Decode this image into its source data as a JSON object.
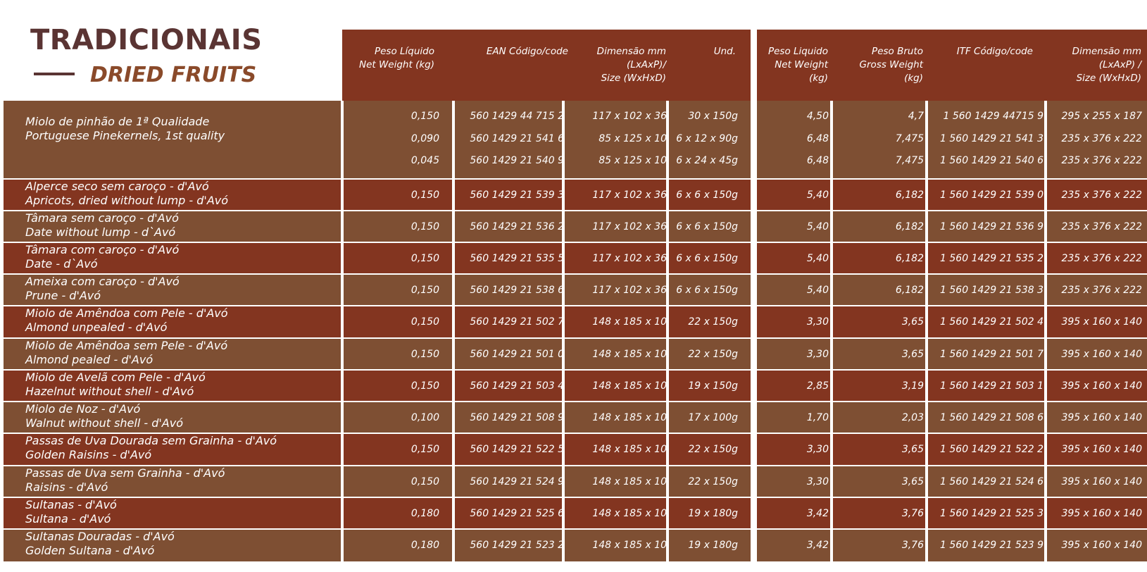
{
  "title": {
    "main": "TRADICIONAIS",
    "sub": "DRIED FRUITS"
  },
  "colors": {
    "header": "#833520",
    "row_dark": "#833520",
    "row_light": "#7e4f33",
    "title": "#5a3433"
  },
  "headers": [
    {
      "lines": [
        "Peso Líquido",
        "Net Weight (kg)"
      ]
    },
    {
      "lines": [
        "EAN Código/code"
      ]
    },
    {
      "lines": [
        "Dimensão mm",
        "(LxAxP)/",
        "Size (WxHxD)"
      ]
    },
    {
      "lines": [
        "Und."
      ]
    },
    {
      "lines": [
        "Peso Liquido",
        "Net Weight",
        "(kg)"
      ]
    },
    {
      "lines": [
        "Peso  Bruto",
        "Gross Weight",
        "(kg)"
      ]
    },
    {
      "lines": [
        "ITF Código/code"
      ]
    },
    {
      "lines": [
        "Dimensão mm",
        "(LxAxP) /",
        "Size (WxHxD)"
      ]
    }
  ],
  "rows": [
    {
      "name_pt": "Miolo de pinhão de 1ª Qualidade",
      "name_en": "Portuguese Pinekernels, 1st quality",
      "values": [
        [
          "0,150",
          "560 1429 44 715 2",
          "117 x 102 x 36",
          "30 x 150g",
          "4,50",
          "4,7",
          "1 560 1429 44715 9",
          "295 x 255 x 187"
        ],
        [
          "0,090",
          "560 1429 21 541 6",
          "85 x 125 x 10",
          "6 x 12 x 90g",
          "6,48",
          "7,475",
          "1 560 1429 21 541 3",
          "235 x 376 x 222"
        ],
        [
          "0,045",
          "560 1429 21 540 9",
          "85 x 125 x 10",
          "6 x 24 x 45g",
          "6,48",
          "7,475",
          "1 560 1429 21 540 6",
          "235 x 376 x 222"
        ]
      ]
    },
    {
      "name_pt": "Alperce seco sem caroço - d'Avó",
      "name_en": "Apricots, dried without lump - d'Avó",
      "values": [
        [
          "0,150",
          "560 1429 21 539 3",
          "117 x 102 x 36",
          "6 x 6 x 150g",
          "5,40",
          "6,182",
          "1 560 1429 21 539 0",
          "235 x 376 x 222"
        ]
      ]
    },
    {
      "name_pt": "Tâmara sem caroço - d'Avó",
      "name_en": "Date without lump - d`Avó",
      "values": [
        [
          "0,150",
          "560 1429 21 536 2",
          "117 x 102 x 36",
          "6 x 6 x 150g",
          "5,40",
          "6,182",
          "1 560 1429 21 536 9",
          "235 x 376 x 222"
        ]
      ]
    },
    {
      "name_pt": "Tâmara com caroço - d'Avó",
      "name_en": "Date - d`Avó",
      "values": [
        [
          "0,150",
          "560 1429 21 535 5",
          "117 x 102 x 36",
          "6 x 6 x 150g",
          "5,40",
          "6,182",
          "1 560 1429 21 535 2",
          "235 x 376 x 222"
        ]
      ]
    },
    {
      "name_pt": "Ameixa com caroço - d'Avó",
      "name_en": "Prune - d'Avó",
      "values": [
        [
          "0,150",
          "560 1429 21 538 6",
          "117 x 102 x 36",
          "6 x 6 x 150g",
          "5,40",
          "6,182",
          "1 560 1429 21 538 3",
          "235 x 376 x 222"
        ]
      ]
    },
    {
      "name_pt": "Miolo de Amêndoa com Pele - d'Avó",
      "name_en": "Almond unpealed - d'Avó",
      "values": [
        [
          "0,150",
          "560 1429 21 502 7",
          "148 x 185 x 10",
          "22 x 150g",
          "3,30",
          "3,65",
          "1 560 1429 21 502 4",
          "395 x 160 x 140"
        ]
      ]
    },
    {
      "name_pt": "Miolo de Amêndoa sem Pele - d'Avó",
      "name_en": "Almond pealed - d'Avó",
      "values": [
        [
          "0,150",
          "560 1429 21 501 0",
          "148 x 185 x 10",
          "22 x 150g",
          "3,30",
          "3,65",
          "1 560 1429 21 501 7",
          "395 x 160 x 140"
        ]
      ]
    },
    {
      "name_pt": "Miolo de Avelã com Pele - d'Avó",
      "name_en": "Hazelnut without shell - d'Avó",
      "values": [
        [
          "0,150",
          "560 1429 21 503 4",
          "148 x 185 x 10",
          "19 x 150g",
          "2,85",
          "3,19",
          "1 560 1429 21 503 1",
          "395 x 160 x 140"
        ]
      ]
    },
    {
      "name_pt": "Miolo de Noz - d'Avó",
      "name_en": "Walnut without shell - d'Avó",
      "values": [
        [
          "0,100",
          "560 1429 21 508 9",
          "148 x 185 x 10",
          "17 x 100g",
          "1,70",
          "2,03",
          "1 560 1429 21 508 6",
          "395 x 160 x 140"
        ]
      ]
    },
    {
      "name_pt": "Passas de Uva Dourada sem Grainha - d'Avó",
      "name_en": "Golden Raisins - d'Avó",
      "values": [
        [
          "0,150",
          "560 1429 21 522 5",
          "148 x 185 x 10",
          "22 x 150g",
          "3,30",
          "3,65",
          "1 560 1429 21 522 2",
          "395 x 160 x 140"
        ]
      ]
    },
    {
      "name_pt": "Passas de Uva sem Grainha - d'Avó",
      "name_en": "Raisins - d'Avó",
      "values": [
        [
          "0,150",
          "560 1429 21 524 9",
          "148 x 185 x 10",
          "22 x 150g",
          "3,30",
          "3,65",
          "1 560 1429 21 524 6",
          "395 x 160 x 140"
        ]
      ]
    },
    {
      "name_pt": "Sultanas - d'Avó",
      "name_en": "Sultana - d'Avó",
      "values": [
        [
          "0,180",
          "560 1429 21 525 6",
          "148 x 185 x 10",
          "19 x 180g",
          "3,42",
          "3,76",
          "1 560 1429 21 525 3",
          "395 x 160 x 140"
        ]
      ]
    },
    {
      "name_pt": "Sultanas Douradas - d'Avó",
      "name_en": "Golden Sultana - d'Avó",
      "values": [
        [
          "0,180",
          "560 1429 21 523 2",
          "148 x 185 x 10",
          "19 x 180g",
          "3,42",
          "3,76",
          "1 560 1429 21 523 9",
          "395 x 160 x 140"
        ]
      ]
    }
  ]
}
